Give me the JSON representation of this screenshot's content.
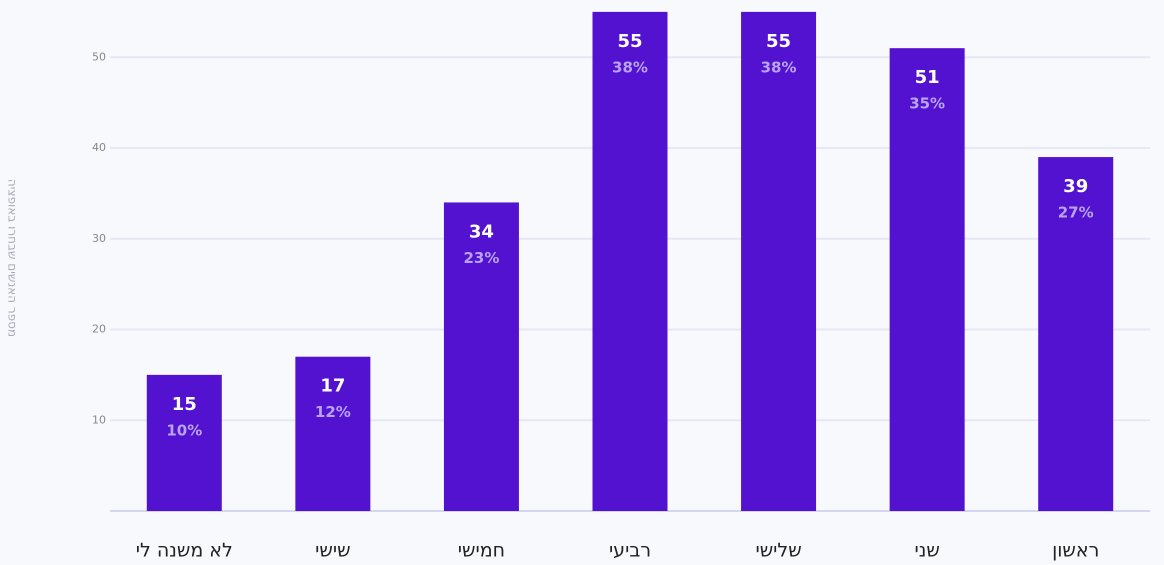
{
  "chart_data": {
    "type": "bar",
    "y_axis_label": "מספר האנשים שבחרו באופציה",
    "categories": [
      "לא משנה לי",
      "שישי",
      "חמישי",
      "רביעי",
      "שלישי",
      "שני",
      "ראשון"
    ],
    "values": [
      15,
      17,
      34,
      55,
      55,
      51,
      39
    ],
    "percent_values": [
      10,
      12,
      23,
      38,
      38,
      35,
      27
    ],
    "percent_labels": [
      "10%",
      "12%",
      "23%",
      "38%",
      "38%",
      "35%",
      "27%"
    ],
    "color": "#5212d0",
    "ylim": [
      0,
      56
    ],
    "yticks": [
      10,
      20,
      30,
      40,
      50
    ],
    "grid": true
  }
}
